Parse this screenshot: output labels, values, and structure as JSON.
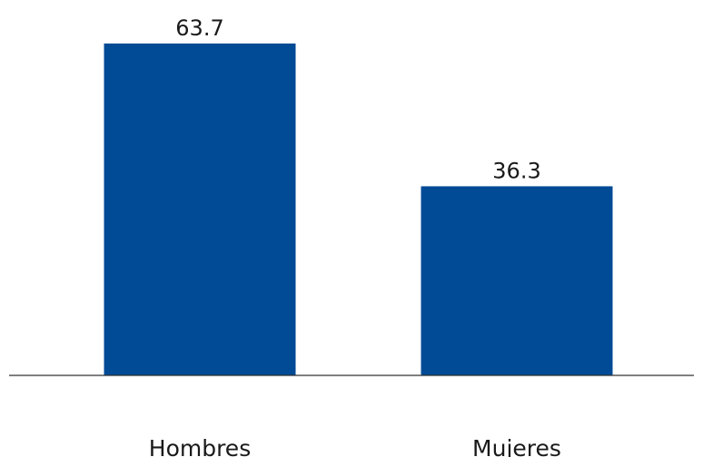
{
  "chart_data": {
    "type": "bar",
    "categories": [
      "Hombres",
      "Mujeres"
    ],
    "values": [
      63.7,
      36.3
    ],
    "title": "",
    "xlabel": "",
    "ylabel": "",
    "ylim": [
      0,
      63.7
    ],
    "grid": false,
    "legend": "none",
    "colors": {
      "bar": "#004A96",
      "axis": "#333333",
      "text": "#1a1a1a"
    }
  }
}
